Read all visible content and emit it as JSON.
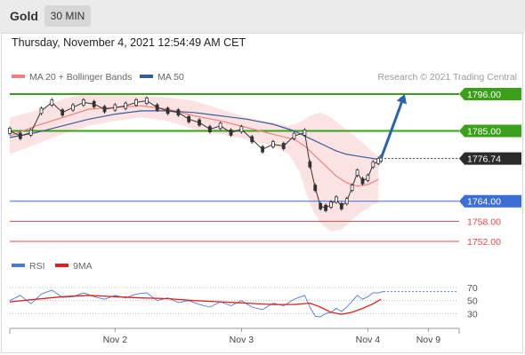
{
  "header": {
    "asset": "Gold",
    "timeframe": "30 MIN"
  },
  "date_line": "Thursday, November 4, 2021 12:54:49 AM CET",
  "chart_data": [
    {
      "type": "line",
      "legend": [
        {
          "label": "MA 20 + Bollinger Bands",
          "color": "#f08080"
        },
        {
          "label": "MA 50",
          "color": "#3a5b9a"
        }
      ],
      "watermark": "Research © 2021 Trading Central",
      "x_ticks": [
        {
          "label": "Nov 2",
          "x": 40
        },
        {
          "label": "Nov 3",
          "x": 88
        },
        {
          "label": "Nov 4",
          "x": 136
        },
        {
          "label": "Nov 9",
          "x": 159
        }
      ],
      "x_range": [
        0,
        170
      ],
      "y_range": [
        1748,
        1800
      ],
      "levels": [
        {
          "label": "1796.00",
          "value": 1796.0,
          "color": "#3aa01a",
          "kind": "resistance"
        },
        {
          "label": "1785.00",
          "value": 1785.0,
          "color": "#3aa01a",
          "kind": "resistance"
        },
        {
          "label": "1764.00",
          "value": 1764.0,
          "color": "#3b6fd4",
          "kind": "support"
        },
        {
          "label": "1758.00",
          "value": 1758.0,
          "color": "#e04848",
          "kind": "minor"
        },
        {
          "label": "1752.00",
          "value": 1752.0,
          "color": "#e04848",
          "kind": "minor"
        }
      ],
      "last_price": {
        "label": "1776.74",
        "value": 1776.74
      },
      "forecast": {
        "from": [
          141,
          1776.74
        ],
        "to": [
          150,
          1796.0
        ],
        "color": "#2a62ad"
      },
      "series": [
        {
          "name": "Gold 30 MIN",
          "role": "price",
          "color": "#333333",
          "x": [
            0,
            4,
            8,
            12,
            16,
            20,
            24,
            28,
            32,
            36,
            40,
            44,
            48,
            52,
            56,
            60,
            64,
            68,
            72,
            76,
            80,
            84,
            88,
            92,
            96,
            100,
            104,
            108,
            112,
            114,
            116,
            118,
            120,
            122,
            124,
            126,
            128,
            130,
            132,
            134,
            136,
            138,
            140,
            141
          ],
          "y": [
            1785.0,
            1783.5,
            1784.5,
            1791.0,
            1793.5,
            1790.5,
            1792.0,
            1793.5,
            1793.0,
            1791.5,
            1792.0,
            1792.5,
            1793.5,
            1794.0,
            1792.0,
            1791.0,
            1790.5,
            1788.5,
            1787.5,
            1785.5,
            1786.5,
            1784.5,
            1785.5,
            1782.5,
            1779.5,
            1781.0,
            1780.5,
            1783.5,
            1784.5,
            1775.0,
            1768.0,
            1762.5,
            1762.0,
            1763.0,
            1764.5,
            1762.5,
            1764.0,
            1768.0,
            1772.5,
            1770.0,
            1771.0,
            1775.0,
            1776.0,
            1776.74
          ]
        },
        {
          "name": "MA 20",
          "role": "ma20",
          "color": "#f08080",
          "x": [
            0,
            10,
            20,
            30,
            40,
            50,
            60,
            70,
            80,
            90,
            100,
            108,
            112,
            116,
            120,
            124,
            128,
            132,
            136,
            140
          ],
          "y": [
            1783.5,
            1786.5,
            1789.0,
            1791.5,
            1792.0,
            1792.5,
            1791.5,
            1789.5,
            1788.0,
            1786.0,
            1784.0,
            1782.5,
            1780.5,
            1777.5,
            1774.5,
            1771.5,
            1769.5,
            1768.5,
            1769.0,
            1770.5
          ]
        },
        {
          "name": "MA 50",
          "role": "ma50",
          "color": "#3a5b9a",
          "x": [
            0,
            10,
            20,
            30,
            40,
            50,
            60,
            70,
            80,
            90,
            100,
            108,
            112,
            116,
            120,
            124,
            128,
            132,
            136,
            140
          ],
          "y": [
            1783.0,
            1784.5,
            1786.5,
            1788.5,
            1790.0,
            1791.0,
            1791.0,
            1790.5,
            1789.5,
            1788.5,
            1787.0,
            1785.0,
            1783.5,
            1782.0,
            1780.5,
            1779.0,
            1778.0,
            1777.5,
            1777.0,
            1776.5
          ]
        },
        {
          "name": "Bollinger Upper",
          "role": "bb_upper",
          "color": "#f6c6c6",
          "x": [
            0,
            10,
            20,
            30,
            40,
            50,
            60,
            70,
            80,
            90,
            100,
            106,
            110,
            114,
            118,
            122,
            126,
            130,
            134,
            138,
            140
          ],
          "y": [
            1789.0,
            1791.0,
            1794.5,
            1796.5,
            1796.0,
            1795.5,
            1795.0,
            1794.0,
            1791.5,
            1789.0,
            1787.5,
            1786.5,
            1787.5,
            1789.5,
            1790.5,
            1789.0,
            1786.5,
            1784.0,
            1781.5,
            1778.5,
            1777.5
          ]
        },
        {
          "name": "Bollinger Lower",
          "role": "bb_lower",
          "color": "#f6c6c6",
          "x": [
            0,
            10,
            20,
            30,
            40,
            50,
            60,
            70,
            80,
            90,
            100,
            106,
            110,
            114,
            118,
            122,
            126,
            130,
            134,
            138,
            140
          ],
          "y": [
            1778.0,
            1781.0,
            1784.0,
            1786.5,
            1788.0,
            1789.0,
            1788.0,
            1785.5,
            1784.0,
            1782.5,
            1780.5,
            1778.0,
            1773.0,
            1763.0,
            1757.5,
            1755.0,
            1755.5,
            1758.5,
            1761.0,
            1763.0,
            1763.5
          ]
        }
      ]
    },
    {
      "type": "line",
      "legend": [
        {
          "label": "RSI",
          "color": "#4a78d8"
        },
        {
          "label": "9MA",
          "color": "#e02020"
        }
      ],
      "y_ticks": [
        {
          "label": "70",
          "value": 70
        },
        {
          "label": "50",
          "value": 50
        },
        {
          "label": "30",
          "value": 30
        }
      ],
      "y_range": [
        10,
        85
      ],
      "x_range": [
        0,
        170
      ],
      "series": [
        {
          "name": "RSI",
          "role": "rsi",
          "color": "#4a78d8",
          "x": [
            0,
            4,
            8,
            12,
            16,
            20,
            24,
            28,
            32,
            36,
            40,
            44,
            48,
            52,
            56,
            60,
            64,
            68,
            72,
            76,
            80,
            84,
            88,
            92,
            96,
            100,
            104,
            108,
            112,
            114,
            116,
            118,
            120,
            122,
            124,
            126,
            128,
            130,
            132,
            134,
            136,
            138,
            140,
            142
          ],
          "y": [
            50,
            58,
            45,
            60,
            66,
            55,
            56,
            62,
            56,
            52,
            58,
            54,
            60,
            62,
            50,
            54,
            47,
            50,
            44,
            40,
            48,
            42,
            50,
            40,
            36,
            46,
            42,
            52,
            58,
            40,
            26,
            25,
            30,
            32,
            38,
            33,
            40,
            49,
            58,
            52,
            56,
            62,
            62,
            64
          ]
        },
        {
          "name": "9MA",
          "role": "rsi_ma",
          "color": "#e02020",
          "x": [
            0,
            10,
            20,
            30,
            40,
            50,
            60,
            70,
            80,
            90,
            100,
            108,
            114,
            118,
            122,
            126,
            130,
            134,
            138,
            141
          ],
          "y": [
            48,
            52,
            56,
            58,
            56,
            54,
            53,
            50,
            48,
            46,
            44,
            44,
            46,
            40,
            32,
            29,
            32,
            38,
            45,
            52
          ]
        }
      ]
    }
  ]
}
